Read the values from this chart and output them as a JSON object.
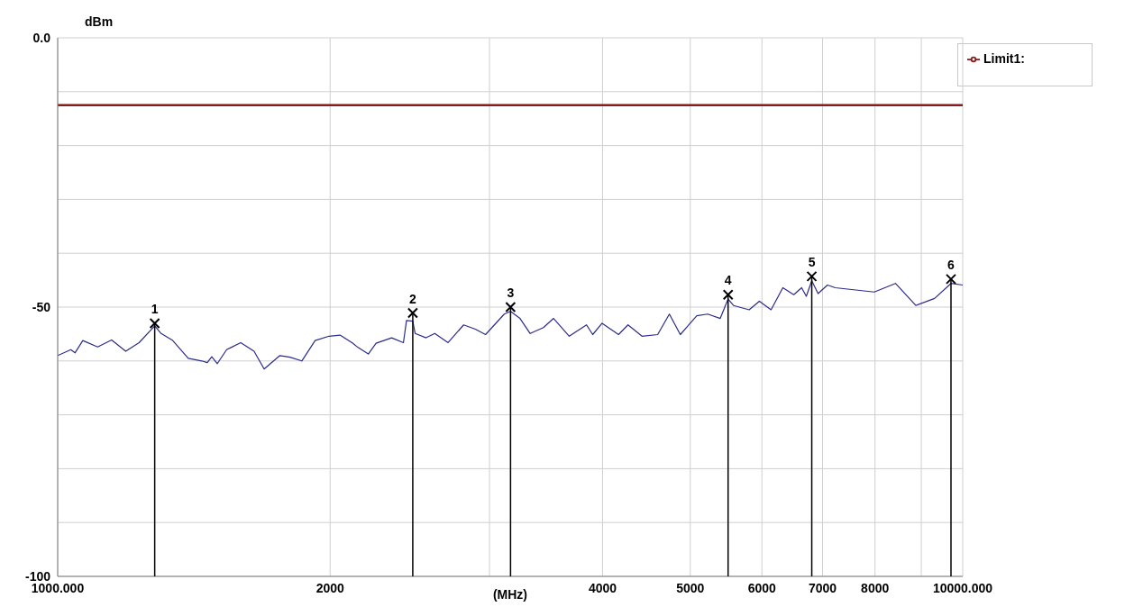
{
  "chart_data": {
    "type": "line",
    "xlabel": "(MHz)",
    "ylabel": "dBm",
    "log": "x",
    "grid": true,
    "legend": "top right",
    "xlim": [
      1000,
      10000
    ],
    "xticks": [
      {
        "value": 1000,
        "label": "1000.000"
      },
      2000,
      {
        "value": 3000,
        "label": null
      },
      4000,
      5000,
      6000,
      7000,
      8000,
      {
        "value": 9000,
        "label": null
      },
      {
        "value": 10000,
        "label": "10000.000"
      }
    ],
    "ylim": [
      -100,
      0
    ],
    "yticks": [
      {
        "value": -100,
        "label": "-100"
      },
      {
        "value": -90,
        "label": null
      },
      {
        "value": -80,
        "label": null
      },
      {
        "value": -70,
        "label": null
      },
      {
        "value": -60,
        "label": null
      },
      {
        "value": -50,
        "label": "-50"
      },
      {
        "value": -40,
        "label": null
      },
      {
        "value": -30,
        "label": null
      },
      {
        "value": -20,
        "label": null
      },
      {
        "value": -10,
        "label": null
      },
      {
        "value": 0,
        "label": "0.0"
      }
    ],
    "series": [
      {
        "type": "line",
        "color": "#2b2b8c",
        "x": [
          1000,
          1034,
          1045,
          1066,
          1107,
          1147,
          1189,
          1230,
          1280,
          1301,
          1340,
          1394,
          1443,
          1463,
          1480,
          1501,
          1537,
          1593,
          1648,
          1691,
          1760,
          1806,
          1861,
          1925,
          1995,
          2051,
          2118,
          2147,
          2204,
          2248,
          2339,
          2410,
          2429,
          2468,
          2483,
          2553,
          2610,
          2700,
          2809,
          2894,
          2970,
          3115,
          3165,
          3242,
          3327,
          3441,
          3531,
          3675,
          3840,
          3901,
          3995,
          4166,
          4267,
          4422,
          4602,
          4741,
          4875,
          5083,
          5227,
          5396,
          5505,
          5582,
          5808,
          5961,
          6141,
          6328,
          6506,
          6637,
          6717,
          6811,
          6921,
          7088,
          7230,
          7985,
          8427,
          8875,
          9309,
          9706,
          10000
        ],
        "values": [
          -59.0,
          -57.9,
          -58.5,
          -56.2,
          -57.4,
          -56.1,
          -58.2,
          -56.6,
          -53.5,
          -54.9,
          -56.2,
          -59.5,
          -60.0,
          -60.3,
          -59.2,
          -60.5,
          -57.9,
          -56.6,
          -58.2,
          -61.5,
          -59.0,
          -59.3,
          -60.0,
          -56.2,
          -55.4,
          -55.2,
          -56.7,
          -57.5,
          -58.7,
          -56.7,
          -55.7,
          -56.6,
          -52.5,
          -52.6,
          -54.9,
          -55.7,
          -54.9,
          -56.6,
          -53.3,
          -54.1,
          -55.1,
          -51.3,
          -50.8,
          -52.1,
          -54.9,
          -53.8,
          -52.1,
          -55.4,
          -53.3,
          -55.1,
          -53.0,
          -55.1,
          -53.3,
          -55.4,
          -55.1,
          -51.3,
          -55.1,
          -51.6,
          -51.3,
          -52.1,
          -48.5,
          -49.7,
          -50.5,
          -48.9,
          -50.5,
          -46.4,
          -47.7,
          -46.4,
          -48.0,
          -45.1,
          -47.5,
          -45.9,
          -46.4,
          -47.2,
          -45.6,
          -49.7,
          -48.4,
          -45.6,
          -45.9
        ]
      },
      {
        "type": "line",
        "name": "Limit1:",
        "color": "#8b1a1a",
        "x": [
          1000,
          10000
        ],
        "values": [
          -12.5,
          -12.5
        ]
      },
      {
        "type": "lollipop",
        "marker": "cross",
        "color": "#000000",
        "x": [
          1280,
          2468,
          3165,
          5505,
          6811,
          9706
        ],
        "values": [
          -53.0,
          -51.1,
          -50.0,
          -47.7,
          -44.3,
          -44.8
        ]
      }
    ],
    "annotations": [
      {
        "text": "1",
        "x": 1280,
        "y": -53.0
      },
      {
        "text": "2",
        "x": 2468,
        "y": -51.1
      },
      {
        "text": "3",
        "x": 3165,
        "y": -50.0
      },
      {
        "text": "4",
        "x": 5505,
        "y": -47.7
      },
      {
        "text": "5",
        "x": 6811,
        "y": -44.3
      },
      {
        "text": "6",
        "x": 9706,
        "y": -44.8
      }
    ]
  }
}
